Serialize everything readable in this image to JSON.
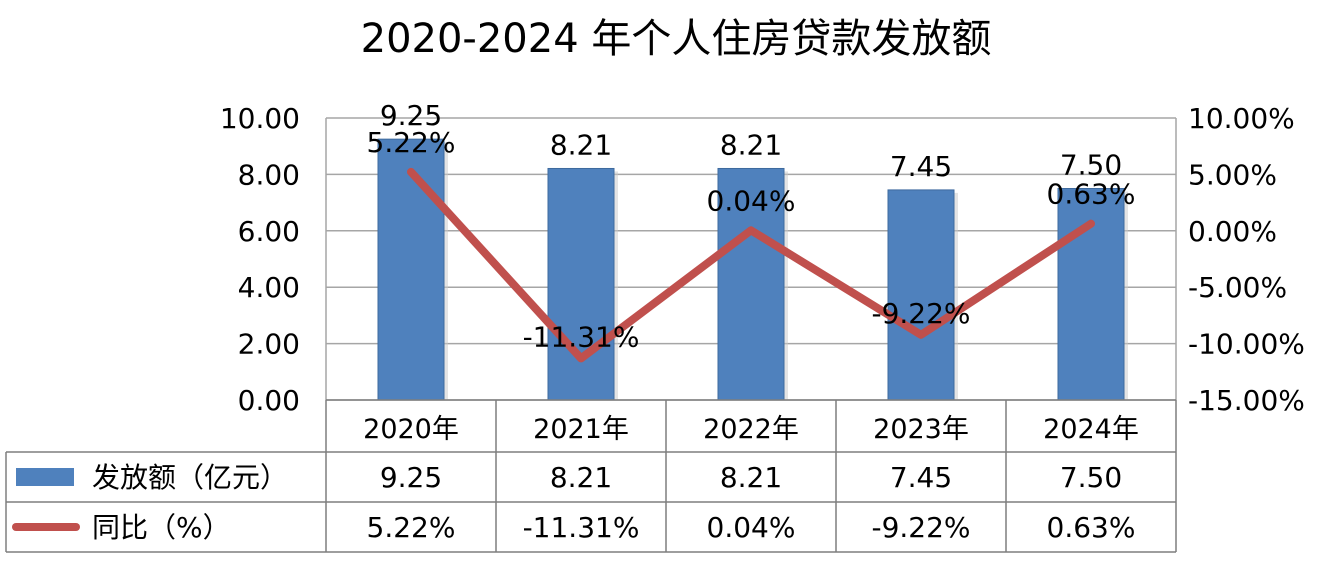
{
  "chart_data": {
    "type": "bar",
    "title": "2020-2024 年个人住房贷款发放额",
    "categories": [
      "2020年",
      "2021年",
      "2022年",
      "2023年",
      "2024年"
    ],
    "series": [
      {
        "name": "发放额（亿元）",
        "type": "bar",
        "axis": "left",
        "color": "#4f81bd",
        "values": [
          9.25,
          8.21,
          8.21,
          7.45,
          7.5
        ],
        "labels": [
          "9.25",
          "8.21",
          "8.21",
          "7.45",
          "7.50"
        ]
      },
      {
        "name": "同比（%）",
        "type": "line",
        "axis": "right",
        "color": "#c0504d",
        "values": [
          5.22,
          -11.31,
          0.04,
          -9.22,
          0.63
        ],
        "labels": [
          "5.22%",
          "-11.31%",
          "0.04%",
          "-9.22%",
          "0.63%"
        ]
      }
    ],
    "y_left": {
      "range": [
        0,
        10
      ],
      "ticks": [
        0,
        2,
        4,
        6,
        8,
        10
      ],
      "tick_labels": [
        "0.00",
        "2.00",
        "4.00",
        "6.00",
        "8.00",
        "10.00"
      ]
    },
    "y_right": {
      "range": [
        -15,
        10
      ],
      "ticks": [
        -15,
        -10,
        -5,
        0,
        5,
        10
      ],
      "tick_labels": [
        "-15.00%",
        "-10.00%",
        "-5.00%",
        "0.00%",
        "5.00%",
        "10.00%"
      ]
    },
    "grid": true,
    "legend": "data-table"
  }
}
